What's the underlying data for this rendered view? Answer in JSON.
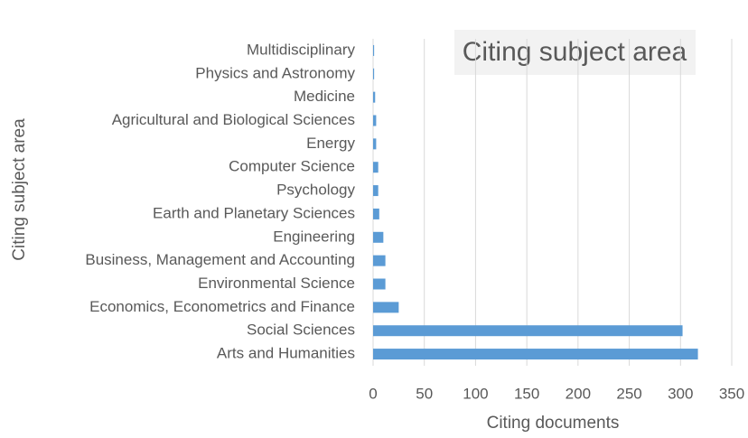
{
  "chart_data": {
    "type": "barh",
    "title": "Citing subject area",
    "x_label": "Citing documents",
    "y_label": "Citing subject area",
    "categories": [
      "Multidisciplinary",
      "Physics and Astronomy",
      "Medicine",
      "Agricultural and Biological Sciences",
      "Energy",
      "Computer Science",
      "Psychology",
      "Earth and Planetary Sciences",
      "Engineering",
      "Business, Management and Accounting",
      "Environmental Science",
      "Economics, Econometrics and Finance",
      "Social Sciences",
      "Arts and Humanities"
    ],
    "values": [
      1,
      1,
      2,
      3,
      3,
      5,
      5,
      6,
      10,
      12,
      12,
      25,
      302,
      317
    ],
    "color": "#5b9bd5",
    "xlim": [
      0,
      350
    ],
    "xticks": [
      0,
      50,
      100,
      150,
      200,
      250,
      300,
      350
    ],
    "grid": true
  }
}
